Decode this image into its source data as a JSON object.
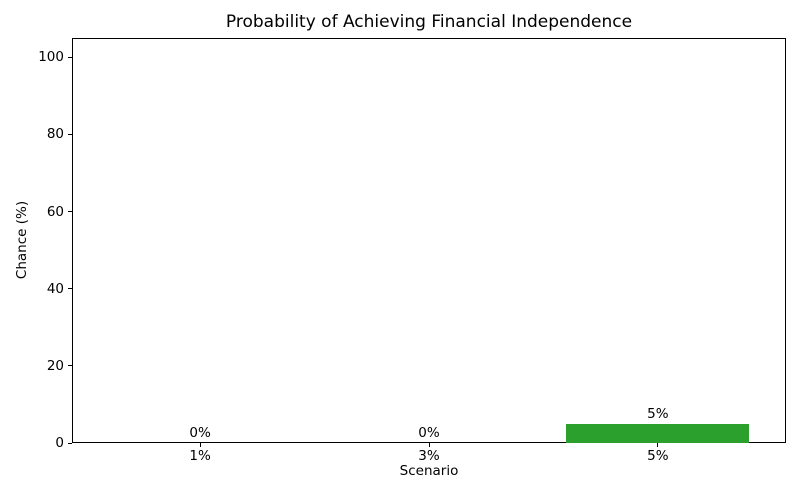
{
  "chart_data": {
    "type": "bar",
    "title": "Probability of Achieving Financial Independence",
    "xlabel": "Scenario",
    "ylabel": "Chance (%)",
    "categories": [
      "1%",
      "3%",
      "5%"
    ],
    "values": [
      0,
      0,
      5
    ],
    "bar_labels": [
      "0%",
      "0%",
      "5%"
    ],
    "bar_color": "#2ca02c",
    "yticks": [
      0,
      20,
      40,
      60,
      80,
      100
    ],
    "ylim": [
      0,
      105
    ],
    "xlim": [
      -0.56,
      2.56
    ],
    "bar_width": 0.8,
    "grid": false,
    "legend_position": "none",
    "text_color": "#000000",
    "spine_color": "#000000",
    "background_color": "#ffffff"
  }
}
